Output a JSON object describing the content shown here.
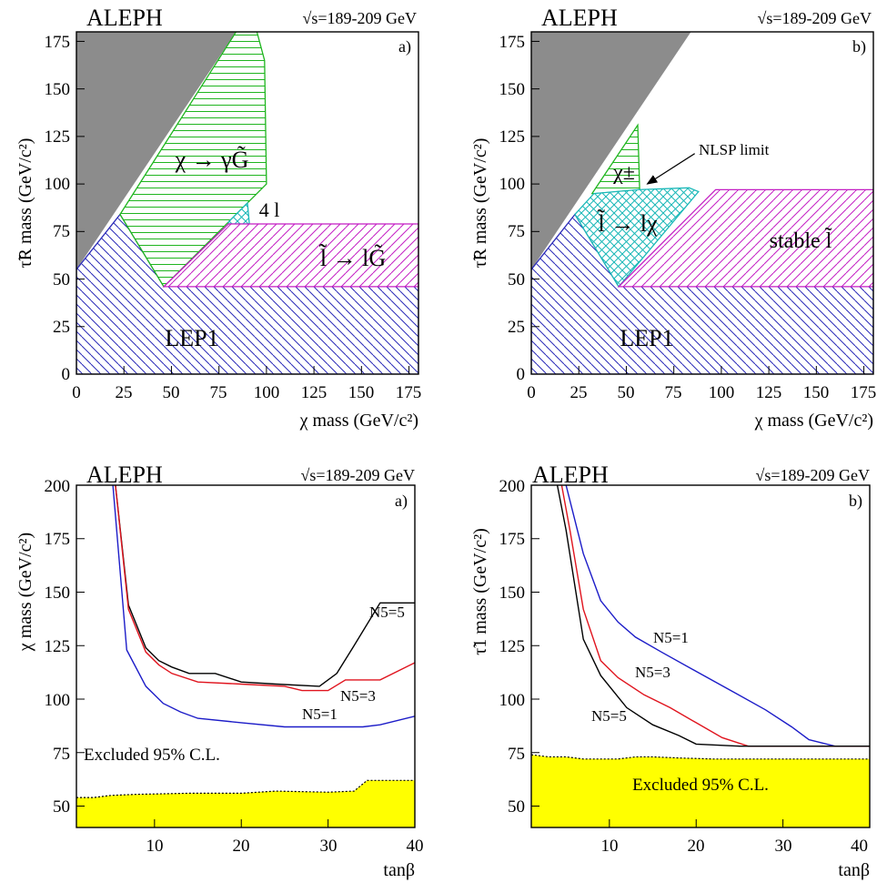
{
  "chart_data": [
    {
      "type": "area",
      "panel": "a)",
      "experiment": "ALEPH",
      "energy": "√s=189-209 GeV",
      "xlabel": "χ mass (GeV/c²)",
      "ylabel": "τ̃R mass (GeV/c²)",
      "xlim": [
        0,
        180
      ],
      "ylim": [
        0,
        180
      ],
      "xticks": [
        "0",
        "25",
        "50",
        "75",
        "100",
        "125",
        "150",
        "175"
      ],
      "yticks": [
        "0",
        "25",
        "50",
        "75",
        "100",
        "125",
        "150",
        "175"
      ],
      "regions": [
        {
          "name": "grey",
          "label": "",
          "color": "#8c8c8c",
          "fill": "solid",
          "points": [
            [
              0,
              55
            ],
            [
              0,
              180
            ],
            [
              84,
              180
            ]
          ]
        },
        {
          "name": "LEP1",
          "label": "LEP1",
          "color": "#2a2ab8",
          "fill": "hatch-desc",
          "points": [
            [
              0,
              0
            ],
            [
              180,
              0
            ],
            [
              180,
              46
            ],
            [
              46,
              46
            ],
            [
              23,
              84
            ],
            [
              0,
              55
            ]
          ]
        },
        {
          "name": "photon",
          "label": "χ → γG̃",
          "color": "#1fb51f",
          "fill": "hatch-horiz",
          "points": [
            [
              23,
              84
            ],
            [
              84,
              180
            ],
            [
              95,
              180
            ],
            [
              99,
              165
            ],
            [
              100,
              100
            ],
            [
              80,
              80
            ],
            [
              46,
              46
            ]
          ]
        },
        {
          "name": "4l",
          "label": "4 l",
          "color": "#1ab8b8",
          "fill": "hatch-cross",
          "points": [
            [
              80,
              80
            ],
            [
              90,
              90
            ],
            [
              91,
              79
            ],
            [
              80,
              79
            ]
          ]
        },
        {
          "name": "slepton",
          "label": "l̃ → lG̃",
          "color": "#c41fc4",
          "fill": "hatch-asc",
          "points": [
            [
              46,
              46
            ],
            [
              180,
              46
            ],
            [
              180,
              79
            ],
            [
              80,
              79
            ]
          ]
        }
      ],
      "annotations": []
    },
    {
      "type": "area",
      "panel": "b)",
      "experiment": "ALEPH",
      "energy": "√s=189-209 GeV",
      "xlabel": "χ mass (GeV/c²)",
      "ylabel": "τ̃R mass (GeV/c²)",
      "xlim": [
        0,
        180
      ],
      "ylim": [
        0,
        180
      ],
      "xticks": [
        "0",
        "25",
        "50",
        "75",
        "100",
        "125",
        "150",
        "175"
      ],
      "yticks": [
        "0",
        "25",
        "50",
        "75",
        "100",
        "125",
        "150",
        "175"
      ],
      "regions": [
        {
          "name": "grey",
          "label": "",
          "color": "#8c8c8c",
          "fill": "solid",
          "points": [
            [
              0,
              55
            ],
            [
              0,
              180
            ],
            [
              84,
              180
            ]
          ]
        },
        {
          "name": "LEP1",
          "label": "LEP1",
          "color": "#2a2ab8",
          "fill": "hatch-desc",
          "points": [
            [
              0,
              0
            ],
            [
              180,
              0
            ],
            [
              180,
              46
            ],
            [
              46,
              46
            ],
            [
              23,
              84
            ],
            [
              0,
              55
            ]
          ]
        },
        {
          "name": "chargino",
          "label": "χ±",
          "color": "#1fb51f",
          "fill": "hatch-horiz",
          "points": [
            [
              32,
              95
            ],
            [
              56,
              131
            ],
            [
              57,
              97
            ],
            [
              34,
              95
            ]
          ]
        },
        {
          "name": "slepton-chi",
          "label": "l̃ → lχ",
          "color": "#1ab8b8",
          "fill": "hatch-cross",
          "points": [
            [
              23,
              84
            ],
            [
              33,
              95
            ],
            [
              56,
              97
            ],
            [
              83,
              98
            ],
            [
              88,
              96
            ],
            [
              46,
              46
            ]
          ]
        },
        {
          "name": "stable",
          "label": "stable l̃",
          "color": "#c41fc4",
          "fill": "hatch-asc",
          "points": [
            [
              46,
              46
            ],
            [
              180,
              46
            ],
            [
              180,
              97
            ],
            [
              97,
              97
            ]
          ]
        }
      ],
      "annotations": [
        {
          "text": "NLSP limit",
          "arrow_from": [
            86,
            116
          ],
          "arrow_to": [
            61,
            100
          ]
        }
      ]
    },
    {
      "type": "line",
      "panel": "a)",
      "experiment": "ALEPH",
      "energy": "√s=189-209 GeV",
      "xlabel": "tanβ",
      "ylabel": "χ mass (GeV/c²)",
      "xlim": [
        1,
        40
      ],
      "ylim": [
        40,
        200
      ],
      "xticks": [
        "10",
        "20",
        "30",
        "40"
      ],
      "yticks": [
        "50",
        "75",
        "100",
        "125",
        "150",
        "175",
        "200"
      ],
      "series": [
        {
          "name": "N5=5",
          "color": "#000000",
          "x": [
            5.5,
            7,
            9,
            10.5,
            12,
            14,
            17,
            20,
            24,
            29,
            31,
            33,
            36,
            40
          ],
          "y": [
            200,
            144,
            124,
            118,
            115,
            112,
            112,
            108,
            107,
            106,
            112,
            125,
            145,
            145
          ]
        },
        {
          "name": "N5=3",
          "color": "#e0141e",
          "x": [
            5.5,
            7,
            9,
            10.5,
            12,
            15,
            20,
            25,
            27,
            30,
            32,
            36,
            40
          ],
          "y": [
            200,
            142,
            122,
            116,
            112,
            108,
            107,
            106,
            104,
            104,
            109,
            109,
            117
          ]
        },
        {
          "name": "N5=1",
          "color": "#1c1cc8",
          "x": [
            5.2,
            6.8,
            9,
            11,
            13,
            15,
            20,
            25,
            29,
            34,
            36,
            40
          ],
          "y": [
            200,
            123,
            106,
            98,
            94,
            91,
            89,
            87,
            87,
            87,
            88,
            92
          ]
        }
      ],
      "excluded": {
        "label": "Excluded 95% C.L.",
        "color": "#ffff00",
        "x": [
          1,
          3,
          5,
          8,
          14,
          20,
          24,
          30,
          33,
          34.5,
          37,
          40
        ],
        "y": [
          54,
          54,
          55,
          55.5,
          56,
          56,
          57,
          56.5,
          57,
          62,
          62,
          62
        ]
      }
    },
    {
      "type": "line",
      "panel": "b)",
      "experiment": "ALEPH",
      "energy": "√s=189-209 GeV",
      "xlabel": "tanβ",
      "ylabel": "τ̃1 mass (GeV/c²)",
      "xlim": [
        1,
        40
      ],
      "ylim": [
        40,
        200
      ],
      "xticks": [
        "10",
        "20",
        "30",
        "40"
      ],
      "yticks": [
        "50",
        "75",
        "100",
        "125",
        "150",
        "175",
        "200"
      ],
      "series": [
        {
          "name": "N5=1",
          "color": "#1c1cc8",
          "x": [
            5,
            7,
            9,
            11,
            13,
            16,
            20,
            24,
            28,
            31,
            33,
            36,
            40
          ],
          "y": [
            200,
            168,
            146,
            136,
            129,
            122,
            113,
            104,
            95,
            87,
            81,
            78,
            78
          ]
        },
        {
          "name": "N5=3",
          "color": "#e0141e",
          "x": [
            4.5,
            5.5,
            7,
            9,
            11,
            14,
            17,
            20,
            23,
            26,
            30,
            40
          ],
          "y": [
            200,
            178,
            142,
            118,
            110,
            102,
            96,
            89,
            82,
            78,
            78,
            78
          ]
        },
        {
          "name": "N5=5",
          "color": "#000000",
          "x": [
            4,
            5,
            7,
            9,
            12,
            15,
            18,
            20,
            25,
            30,
            40
          ],
          "y": [
            200,
            179,
            128,
            111,
            96,
            88,
            83,
            79,
            78,
            78,
            78
          ]
        }
      ],
      "excluded": {
        "label": "Excluded 95% C.L.",
        "color": "#ffff00",
        "x": [
          1,
          3,
          5,
          7,
          11,
          13,
          15,
          18,
          22,
          26,
          30,
          35,
          40
        ],
        "y": [
          74,
          73,
          73,
          72,
          72,
          73,
          73,
          72.5,
          72,
          72,
          72,
          72,
          72
        ]
      }
    }
  ]
}
